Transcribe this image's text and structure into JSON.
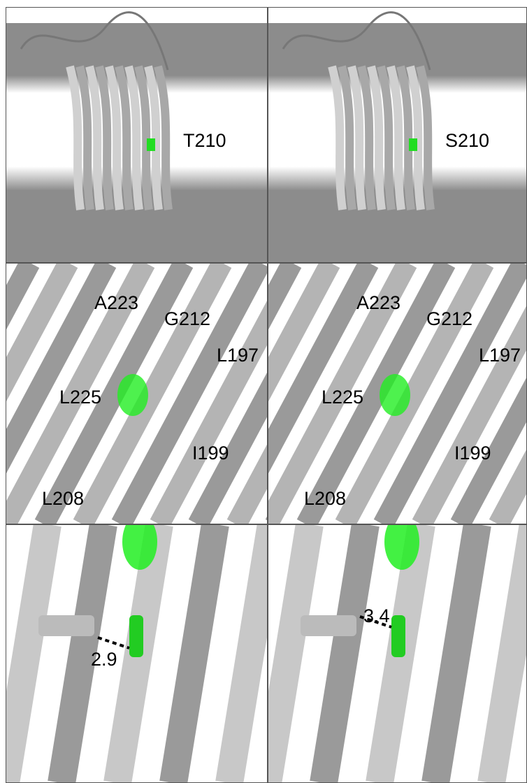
{
  "top_row": {
    "left": {
      "residue": "T210"
    },
    "right": {
      "residue": "S210"
    }
  },
  "middle_row": {
    "left": {
      "labels": [
        "A223",
        "G212",
        "L197",
        "L225",
        "I199",
        "L208"
      ]
    },
    "right": {
      "labels": [
        "A223",
        "G212",
        "L197",
        "L225",
        "I199",
        "L208"
      ]
    }
  },
  "bottom_row": {
    "left": {
      "distance": 2.9
    },
    "right": {
      "distance": 3.4
    }
  }
}
